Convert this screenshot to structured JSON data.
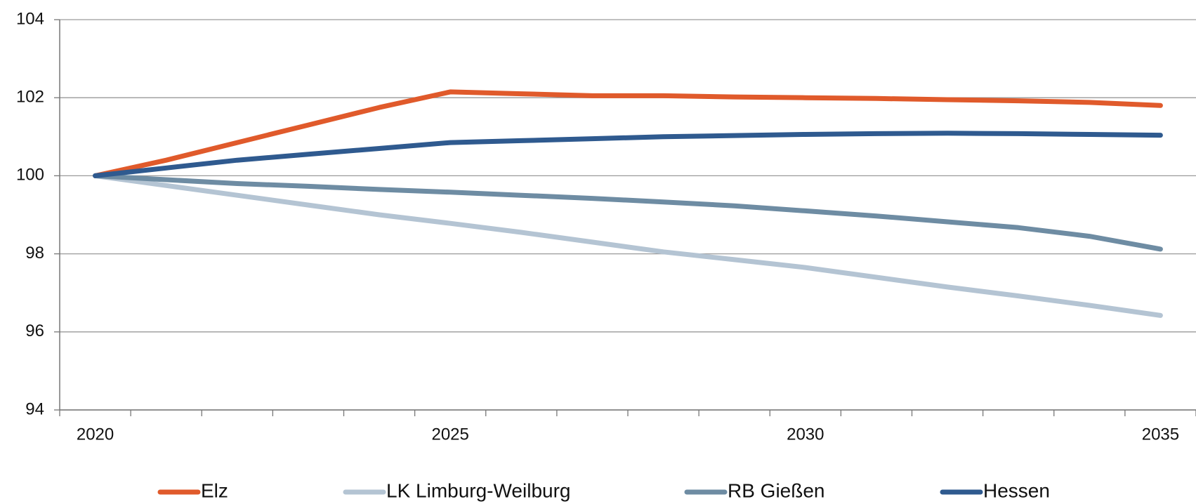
{
  "chart_data": {
    "type": "line",
    "categories": [
      2020,
      null,
      null,
      null,
      null,
      2025,
      null,
      null,
      null,
      null,
      2030,
      null,
      null,
      null,
      null,
      2035
    ],
    "ylim": [
      94,
      104
    ],
    "yticks": [
      94,
      96,
      98,
      100,
      102,
      104
    ],
    "grid": true,
    "legend": "bottom",
    "series": [
      {
        "name": "Elz",
        "color": "#e05a2b",
        "values": [
          100,
          100.4,
          100.85,
          101.3,
          101.75,
          102.15,
          102.1,
          102.05,
          102.05,
          102.02,
          102.0,
          101.98,
          101.95,
          101.92,
          101.88,
          101.8
        ]
      },
      {
        "name": "LK Limburg-Weilburg",
        "color": "#b4c4d3",
        "values": [
          100,
          99.75,
          99.5,
          99.25,
          99.0,
          98.78,
          98.55,
          98.3,
          98.05,
          97.85,
          97.65,
          97.4,
          97.15,
          96.92,
          96.68,
          96.42
        ]
      },
      {
        "name": "RB Gießen",
        "color": "#6e8ca3",
        "values": [
          100,
          99.9,
          99.8,
          99.73,
          99.65,
          99.58,
          99.5,
          99.42,
          99.33,
          99.23,
          99.1,
          98.97,
          98.82,
          98.67,
          98.45,
          98.12
        ]
      },
      {
        "name": "Hessen",
        "color": "#2f5a8f",
        "values": [
          100,
          100.2,
          100.4,
          100.55,
          100.7,
          100.85,
          100.9,
          100.95,
          101.0,
          101.03,
          101.06,
          101.08,
          101.09,
          101.08,
          101.06,
          101.04
        ]
      }
    ]
  }
}
